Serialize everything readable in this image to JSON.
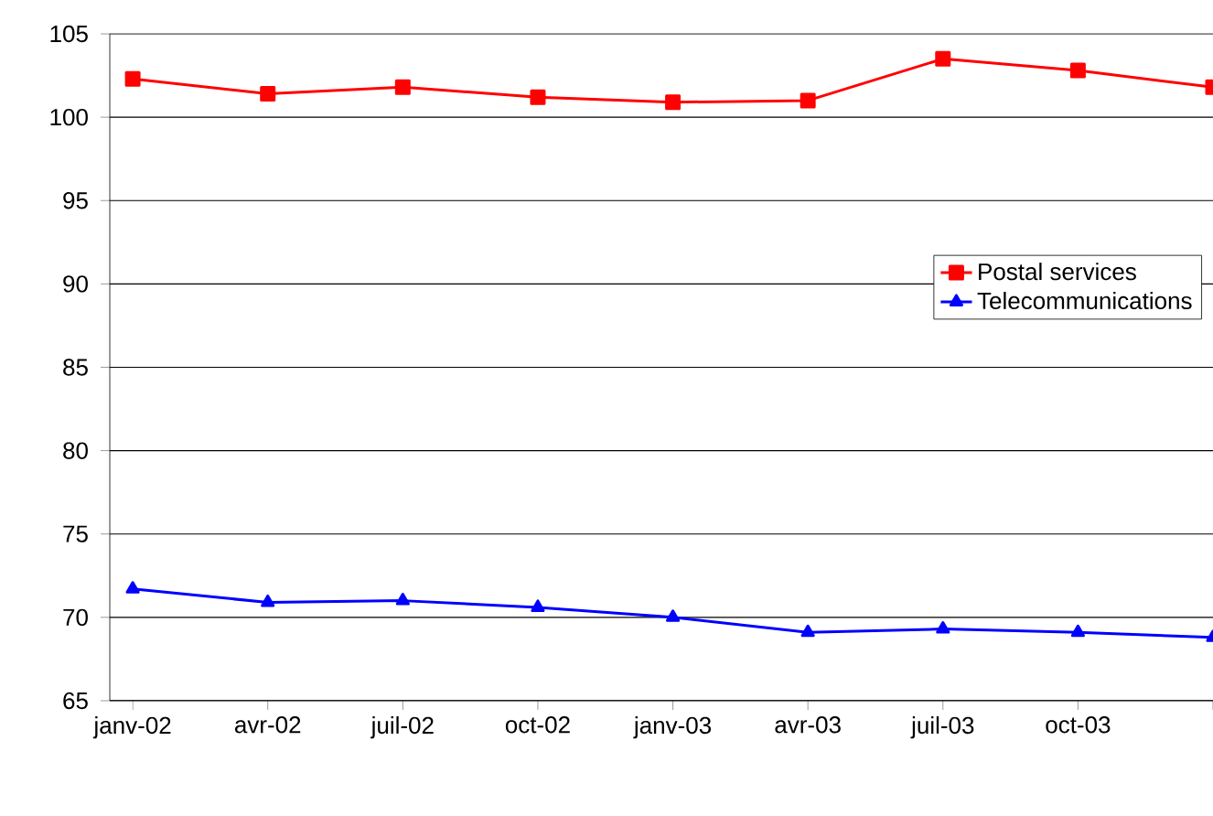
{
  "chart_data": {
    "type": "line",
    "categories": [
      "janv-02",
      "avr-02",
      "juil-02",
      "oct-02",
      "janv-03",
      "avr-03",
      "juil-03",
      "oct-03",
      null
    ],
    "series": [
      {
        "name": "Postal services",
        "color": "#ff0000",
        "marker": "square",
        "values": [
          102.3,
          101.4,
          101.8,
          101.2,
          100.9,
          101.0,
          103.5,
          102.8,
          101.8
        ]
      },
      {
        "name": "Telecommunications",
        "color": "#0000ff",
        "marker": "triangle",
        "values": [
          71.7,
          70.9,
          71.0,
          70.6,
          70.0,
          69.1,
          69.3,
          69.1,
          68.8
        ]
      }
    ],
    "ylim": [
      65,
      105
    ],
    "yticks": [
      65,
      70,
      75,
      80,
      85,
      90,
      95,
      100,
      105
    ],
    "grid": "y",
    "legend": "right"
  }
}
